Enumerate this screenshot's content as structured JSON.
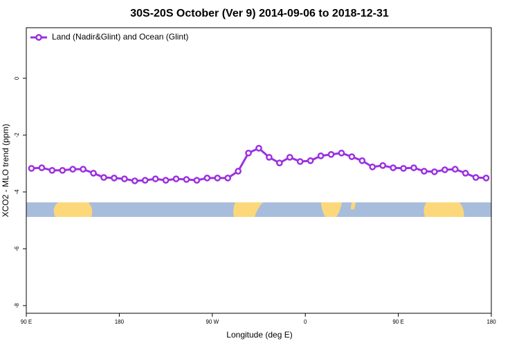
{
  "chart_data": {
    "type": "line",
    "title": "30S-20S October (Ver 9)   2014-09-06 to 2018-12-31",
    "x_label": "Longitude (deg E)",
    "y_label": "XCO2 - MLO trend (ppm)",
    "legend": "top-left",
    "xlim": [
      90,
      540
    ],
    "xticks": [
      {
        "value": 90,
        "label": "90 E"
      },
      180,
      {
        "value": 270,
        "label": "90 W"
      },
      {
        "value": 360,
        "label": "0"
      },
      {
        "value": 450,
        "label": "90 E"
      },
      {
        "value": 540,
        "label": "180"
      }
    ],
    "ylim": [
      -8.27,
      1.78
    ],
    "yticks": [
      0,
      -2,
      -4,
      -6,
      -8
    ],
    "series": [
      {
        "name": "Land (Nadir&Glint) and Ocean (Glint)",
        "color": "#9b30e0",
        "x": [
          95,
          105,
          115,
          125,
          135,
          145,
          155,
          165,
          175,
          185,
          195,
          205,
          215,
          225,
          235,
          245,
          255,
          265,
          275,
          285,
          295,
          305,
          315,
          325,
          335,
          345,
          355,
          365,
          375,
          385,
          395,
          405,
          415,
          425,
          435,
          445,
          455,
          465,
          475,
          485,
          495,
          505,
          515,
          525,
          535
        ],
        "values": [
          -3.17,
          -3.15,
          -3.24,
          -3.24,
          -3.2,
          -3.2,
          -3.34,
          -3.49,
          -3.51,
          -3.54,
          -3.61,
          -3.59,
          -3.54,
          -3.59,
          -3.54,
          -3.56,
          -3.59,
          -3.51,
          -3.51,
          -3.51,
          -3.27,
          -2.63,
          -2.46,
          -2.78,
          -2.98,
          -2.78,
          -2.93,
          -2.9,
          -2.73,
          -2.68,
          -2.63,
          -2.76,
          -2.9,
          -3.12,
          -3.07,
          -3.15,
          -3.17,
          -3.15,
          -3.27,
          -3.29,
          -3.22,
          -3.2,
          -3.34,
          -3.49,
          -3.51
        ]
      }
    ]
  }
}
